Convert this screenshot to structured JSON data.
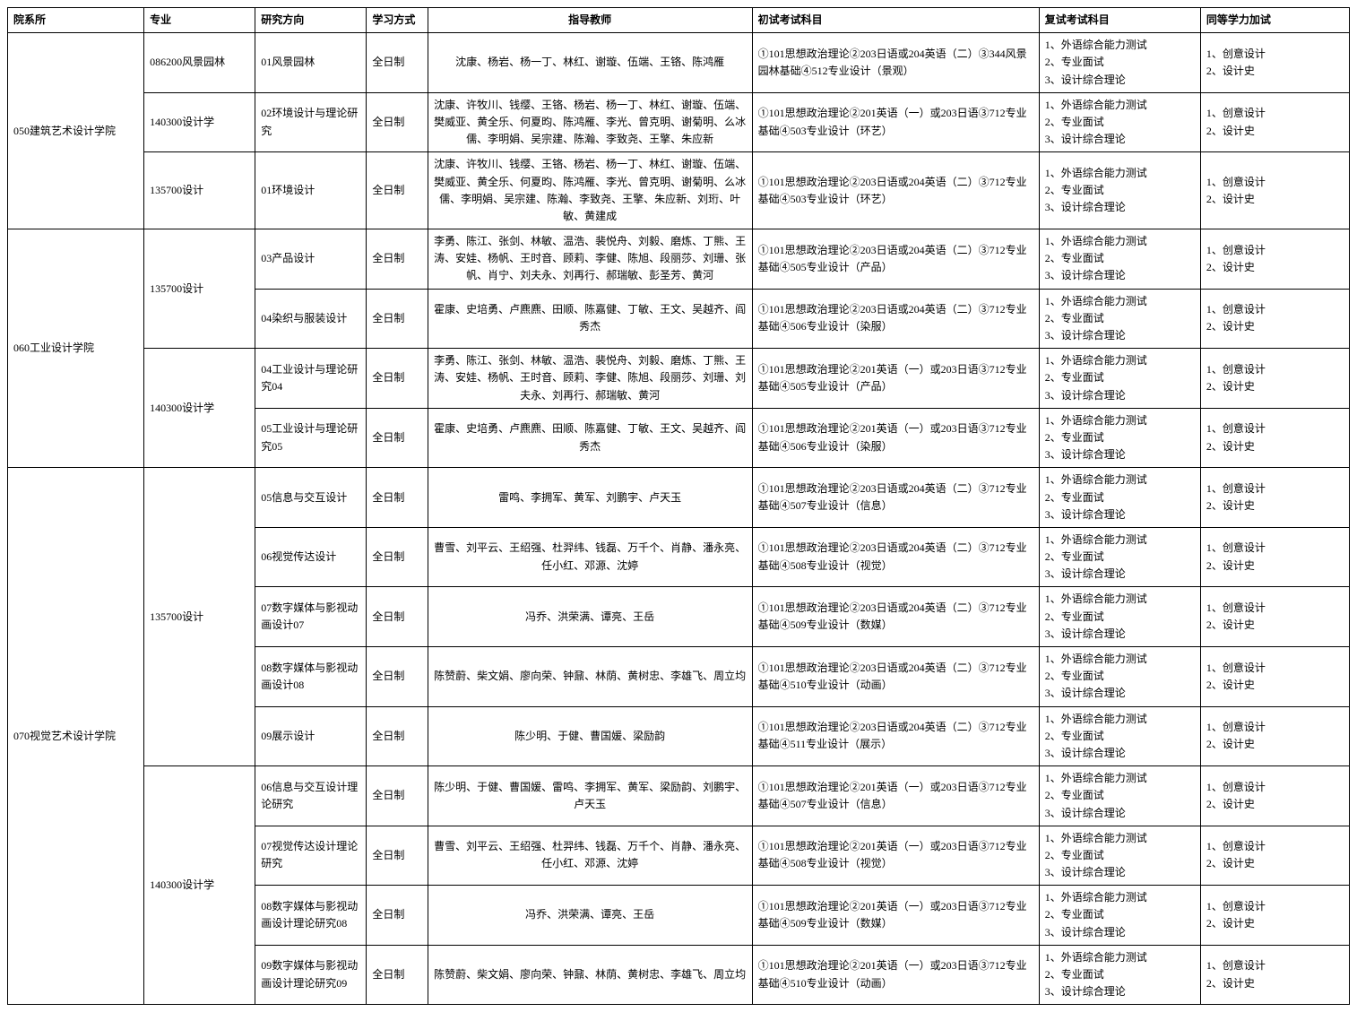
{
  "headers": {
    "dept": "院系所",
    "major": "专业",
    "direction": "研究方向",
    "mode": "学习方式",
    "teacher": "指导教师",
    "exam1": "初试考试科目",
    "exam2": "复试考试科目",
    "extra": "同等学力加试"
  },
  "rows": [
    {
      "dept": "050建筑艺术设计学院",
      "deptRowspan": 3,
      "major": "086200风景园林",
      "majorRowspan": 1,
      "direction": "01风景园林",
      "mode": "全日制",
      "teacher": "沈康、杨岩、杨一丁、林红、谢璇、伍端、王铬、陈鸿雁",
      "exam1": "①101思想政治理论②203日语或204英语（二）③344风景园林基础④512专业设计（景观）",
      "exam2": "1、外语综合能力测试\n2、专业面试\n3、设计综合理论",
      "extra": "1、创意设计\n2、设计史"
    },
    {
      "major": "140300设计学",
      "majorRowspan": 1,
      "direction": "02环境设计与理论研究",
      "mode": "全日制",
      "teacher": "沈康、许牧川、钱缨、王铬、杨岩、杨一丁、林红、谢璇、伍端、樊威亚、黄全乐、何夏昀、陈鸿雁、李光、曾克明、谢菊明、么冰儒、李明娟、吴宗建、陈瀚、李致尧、王擎、朱应新",
      "exam1": "①101思想政治理论②201英语（一）或203日语③712专业基础④503专业设计（环艺）",
      "exam2": "1、外语综合能力测试\n2、专业面试\n3、设计综合理论",
      "extra": "1、创意设计\n2、设计史"
    },
    {
      "major": "135700设计",
      "majorRowspan": 1,
      "direction": "01环境设计",
      "mode": "全日制",
      "teacher": "沈康、许牧川、钱缨、王铬、杨岩、杨一丁、林红、谢璇、伍端、樊威亚、黄全乐、何夏昀、陈鸿雁、李光、曾克明、谢菊明、么冰儒、李明娟、吴宗建、陈瀚、李致尧、王擎、朱应新、刘珩、叶敏、黄建成",
      "exam1": "①101思想政治理论②203日语或204英语（二）③712专业基础④503专业设计（环艺）",
      "exam2": "1、外语综合能力测试\n2、专业面试\n3、设计综合理论",
      "extra": "1、创意设计\n2、设计史"
    },
    {
      "dept": "060工业设计学院",
      "deptRowspan": 4,
      "major": "135700设计",
      "majorRowspan": 2,
      "direction": "03产品设计",
      "mode": "全日制",
      "teacher": "李勇、陈江、张剑、林敏、温浩、裴悦舟、刘毅、磨炼、丁熊、王涛、安娃、杨帆、王时音、顾莉、李健、陈旭、段丽莎、刘珊、张帆、肖宁、刘夫永、刘再行、郝瑞敏、彭圣芳、黄河",
      "exam1": "①101思想政治理论②203日语或204英语（二）③712专业基础④505专业设计（产品）",
      "exam2": "1、外语综合能力测试\n2、专业面试\n3、设计综合理论",
      "extra": "1、创意设计\n2、设计史"
    },
    {
      "direction": "04染织与服装设计",
      "mode": "全日制",
      "teacher": "霍康、史培勇、卢麃麃、田顺、陈嘉健、丁敏、王文、吴越齐、阎秀杰",
      "exam1": "①101思想政治理论②203日语或204英语（二）③712专业基础④506专业设计（染服）",
      "exam2": "1、外语综合能力测试\n2、专业面试\n3、设计综合理论",
      "extra": "1、创意设计\n2、设计史"
    },
    {
      "major": "140300设计学",
      "majorRowspan": 2,
      "direction": "04工业设计与理论研究04",
      "mode": "全日制",
      "teacher": "李勇、陈江、张剑、林敏、温浩、裴悦舟、刘毅、磨炼、丁熊、王涛、安娃、杨帆、王时音、顾莉、李健、陈旭、段丽莎、刘珊、刘夫永、刘再行、郝瑞敏、黄河",
      "exam1": "①101思想政治理论②201英语（一）或203日语③712专业基础④505专业设计（产品）",
      "exam2": "1、外语综合能力测试\n2、专业面试\n3、设计综合理论",
      "extra": "1、创意设计\n2、设计史"
    },
    {
      "direction": "05工业设计与理论研究05",
      "mode": "全日制",
      "teacher": "霍康、史培勇、卢麃麃、田顺、陈嘉健、丁敏、王文、吴越齐、阎秀杰",
      "exam1": "①101思想政治理论②201英语（一）或203日语③712专业基础④506专业设计（染服）",
      "exam2": "1、外语综合能力测试\n2、专业面试\n3、设计综合理论",
      "extra": "1、创意设计\n2、设计史"
    },
    {
      "dept": "070视觉艺术设计学院",
      "deptRowspan": 9,
      "major": "135700设计",
      "majorRowspan": 5,
      "direction": "05信息与交互设计",
      "mode": "全日制",
      "teacher": "雷鸣、李拥军、黄军、刘鹏宇、卢天玉",
      "exam1": "①101思想政治理论②203日语或204英语（二）③712专业基础④507专业设计（信息）",
      "exam2": "1、外语综合能力测试\n2、专业面试\n3、设计综合理论",
      "extra": "1、创意设计\n2、设计史"
    },
    {
      "direction": "06视觉传达设计",
      "mode": "全日制",
      "teacher": "曹雪、刘平云、王绍强、杜羿纬、钱磊、万千个、肖静、潘永亮、任小红、邓源、沈婷",
      "exam1": "①101思想政治理论②203日语或204英语（二）③712专业基础④508专业设计（视觉）",
      "exam2": "1、外语综合能力测试\n2、专业面试\n3、设计综合理论",
      "extra": "1、创意设计\n2、设计史"
    },
    {
      "direction": "07数字媒体与影视动画设计07",
      "mode": "全日制",
      "teacher": "冯乔、洪荣满、谭亮、王岳",
      "exam1": "①101思想政治理论②203日语或204英语（二）③712专业基础④509专业设计（数媒）",
      "exam2": "1、外语综合能力测试\n2、专业面试\n3、设计综合理论",
      "extra": "1、创意设计\n2、设计史"
    },
    {
      "direction": "08数字媒体与影视动画设计08",
      "mode": "全日制",
      "teacher": "陈赞蔚、柴文娟、廖向荣、钟鼐、林荫、黄树忠、李雄飞、周立均",
      "exam1": "①101思想政治理论②203日语或204英语（二）③712专业基础④510专业设计（动画）",
      "exam2": "1、外语综合能力测试\n2、专业面试\n3、设计综合理论",
      "extra": "1、创意设计\n2、设计史"
    },
    {
      "direction": "09展示设计",
      "mode": "全日制",
      "teacher": "陈少明、于健、曹国媛、梁励韵",
      "exam1": "①101思想政治理论②203日语或204英语（二）③712专业基础④511专业设计（展示）",
      "exam2": "1、外语综合能力测试\n2、专业面试\n3、设计综合理论",
      "extra": "1、创意设计\n2、设计史"
    },
    {
      "major": "140300设计学",
      "majorRowspan": 4,
      "direction": "06信息与交互设计理论研究",
      "mode": "全日制",
      "teacher": "陈少明、于健、曹国媛、雷鸣、李拥军、黄军、梁励韵、刘鹏宇、卢天玉",
      "exam1": "①101思想政治理论②201英语（一）或203日语③712专业基础④507专业设计（信息）",
      "exam2": "1、外语综合能力测试\n2、专业面试\n3、设计综合理论",
      "extra": "1、创意设计\n2、设计史"
    },
    {
      "direction": "07视觉传达设计理论研究",
      "mode": "全日制",
      "teacher": "曹雪、刘平云、王绍强、杜羿纬、钱磊、万千个、肖静、潘永亮、任小红、邓源、沈婷",
      "exam1": "①101思想政治理论②201英语（一）或203日语③712专业基础④508专业设计（视觉）",
      "exam2": "1、外语综合能力测试\n2、专业面试\n3、设计综合理论",
      "extra": "1、创意设计\n2、设计史"
    },
    {
      "direction": "08数字媒体与影视动画设计理论研究08",
      "mode": "全日制",
      "teacher": "冯乔、洪荣满、谭亮、王岳",
      "exam1": "①101思想政治理论②201英语（一）或203日语③712专业基础④509专业设计（数媒）",
      "exam2": "1、外语综合能力测试\n2、专业面试\n3、设计综合理论",
      "extra": "1、创意设计\n2、设计史"
    },
    {
      "direction": "09数字媒体与影视动画设计理论研究09",
      "mode": "全日制",
      "teacher": "陈赞蔚、柴文娟、廖向荣、钟鼐、林荫、黄树忠、李雄飞、周立均",
      "exam1": "①101思想政治理论②201英语（一）或203日语③712专业基础④510专业设计（动画）",
      "exam2": "1、外语综合能力测试\n2、专业面试\n3、设计综合理论",
      "extra": "1、创意设计\n2、设计史"
    }
  ]
}
